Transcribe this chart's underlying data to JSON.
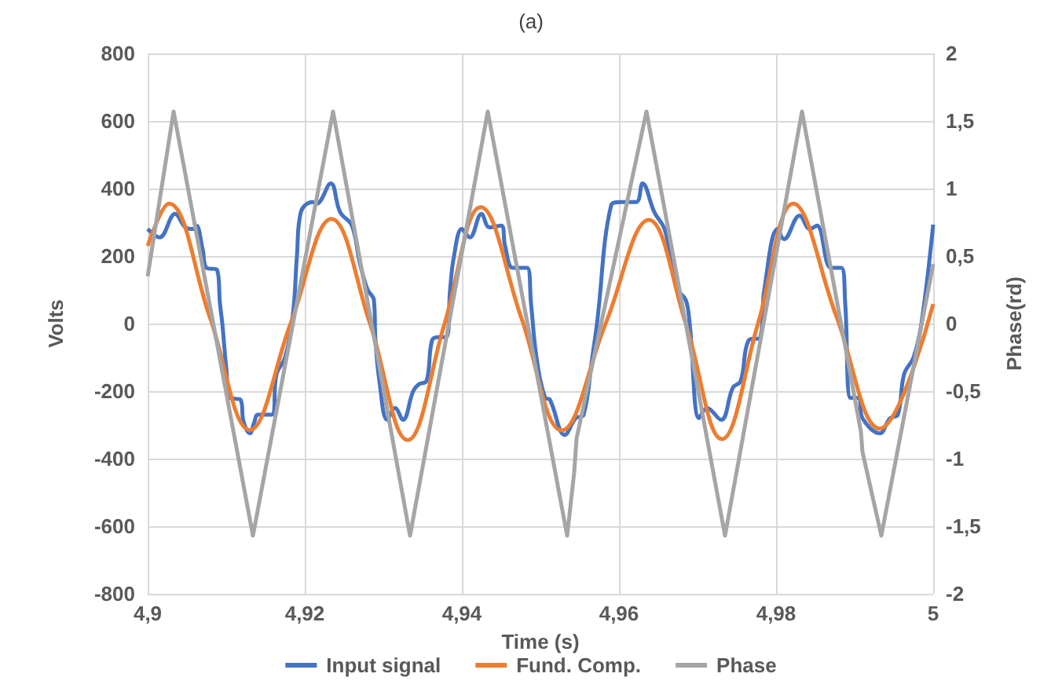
{
  "chart_data": {
    "type": "line",
    "title": "(a)",
    "xlabel": "Time (s)",
    "ylabel": "Volts",
    "y2label": "Phase(rd)",
    "xlim": [
      4.9,
      5
    ],
    "xticks": [
      {
        "value": 4.9,
        "label": "4,9"
      },
      {
        "value": 4.92,
        "label": "4,92"
      },
      {
        "value": 4.94,
        "label": "4,94"
      },
      {
        "value": 4.96,
        "label": "4,96"
      },
      {
        "value": 4.98,
        "label": "4,98"
      },
      {
        "value": 5,
        "label": "5"
      }
    ],
    "ylim": [
      -800,
      800
    ],
    "yticks": [
      -800,
      -600,
      -400,
      -200,
      0,
      200,
      400,
      600,
      800
    ],
    "y2lim": [
      -2,
      2
    ],
    "y2ticks": [
      -2,
      {
        "value": -1.5,
        "label": "-1,5"
      },
      -1,
      {
        "value": -0.5,
        "label": "-0,5"
      },
      0,
      {
        "value": 0.5,
        "label": "0,5"
      },
      1,
      {
        "value": 1.5,
        "label": "1,5"
      },
      2
    ],
    "grid": true,
    "legend": "bottom",
    "marker": "none",
    "series": [
      {
        "name": "Input signal",
        "color": "#4472c4",
        "x": [
          4.9,
          4.9015,
          4.9035,
          4.9048,
          4.9058,
          4.9062,
          4.907,
          4.9075,
          4.9088,
          4.9092,
          4.9095,
          4.91,
          4.9105,
          4.9118,
          4.9122,
          4.913,
          4.9136,
          4.914,
          4.9158,
          4.9164,
          4.9175,
          4.9185,
          4.919,
          4.9195,
          4.921,
          4.9215,
          4.9233,
          4.9245,
          4.926,
          4.927,
          4.928,
          4.9288,
          4.929,
          4.9295,
          4.9305,
          4.9315,
          4.9325,
          4.9338,
          4.9345,
          4.9355,
          4.9362,
          4.937,
          4.938,
          4.9385,
          4.939,
          4.94,
          4.941,
          4.9425,
          4.9435,
          4.945,
          4.9455,
          4.9465,
          4.9483,
          4.9488,
          4.9495,
          4.9506,
          4.9512,
          4.9531,
          4.9545,
          4.9555,
          4.9566,
          4.9572,
          4.959,
          4.9603,
          4.9622,
          4.963,
          4.9645,
          4.9658,
          4.9665,
          4.9675,
          4.9685,
          4.969,
          4.9702,
          4.9712,
          4.973,
          4.9745,
          4.9755,
          4.9765,
          4.978,
          4.9785,
          4.9802,
          4.981,
          4.983,
          4.9843,
          4.9852,
          4.987,
          4.9883,
          4.9888,
          4.9895,
          4.9905,
          4.991,
          4.9932,
          4.9945,
          4.9955,
          4.9963,
          4.9975,
          4.9985,
          5
        ],
        "values": [
          280,
          255,
          325,
          285,
          280,
          290,
          220,
          165,
          160,
          60,
          0,
          -130,
          -220,
          -225,
          -290,
          -325,
          -290,
          -270,
          -270,
          -150,
          -100,
          30,
          200,
          330,
          360,
          355,
          415,
          330,
          290,
          180,
          100,
          70,
          -50,
          -170,
          -285,
          -250,
          -285,
          -200,
          -180,
          -170,
          -50,
          -40,
          -40,
          100,
          200,
          280,
          255,
          325,
          285,
          290,
          230,
          165,
          165,
          60,
          -100,
          -220,
          -225,
          -330,
          -280,
          -270,
          -100,
          0,
          350,
          360,
          360,
          415,
          330,
          280,
          200,
          100,
          70,
          0,
          -280,
          -250,
          -285,
          -190,
          -170,
          -50,
          -40,
          100,
          280,
          250,
          320,
          280,
          290,
          165,
          165,
          60,
          -220,
          -220,
          -280,
          -325,
          -280,
          -270,
          -150,
          -100,
          0,
          293
        ]
      },
      {
        "name": "Fund. Comp.",
        "color": "#ed7d31",
        "x": [
          4.9,
          4.9027,
          4.9079,
          4.913,
          4.9182,
          4.9234,
          4.9283,
          4.9331,
          4.9378,
          4.9424,
          4.9476,
          4.9527,
          4.9583,
          4.9638,
          4.9685,
          4.9731,
          4.9777,
          4.9822,
          4.9877,
          4.9932,
          5
        ],
        "values": [
          230,
          355,
          20,
          -315,
          0,
          310,
          0,
          -345,
          0,
          345,
          15,
          -316,
          0,
          307,
          0,
          -342,
          0,
          355,
          20,
          -311,
          58
        ]
      },
      {
        "name": "Phase",
        "color": "#a5a5a5",
        "axis": "y2",
        "x": [
          4.9,
          4.9033,
          4.9134,
          4.9236,
          4.9334,
          4.9433,
          4.9534,
          4.9543,
          4.9546,
          4.9635,
          4.9735,
          4.9833,
          4.9908,
          4.991,
          4.9934,
          5
        ],
        "values": [
          0.35,
          1.57,
          -1.57,
          1.57,
          -1.57,
          1.57,
          -1.57,
          -1.1,
          -0.85,
          1.57,
          -1.57,
          1.57,
          -0.8,
          -0.95,
          -1.57,
          0.44
        ]
      }
    ]
  }
}
